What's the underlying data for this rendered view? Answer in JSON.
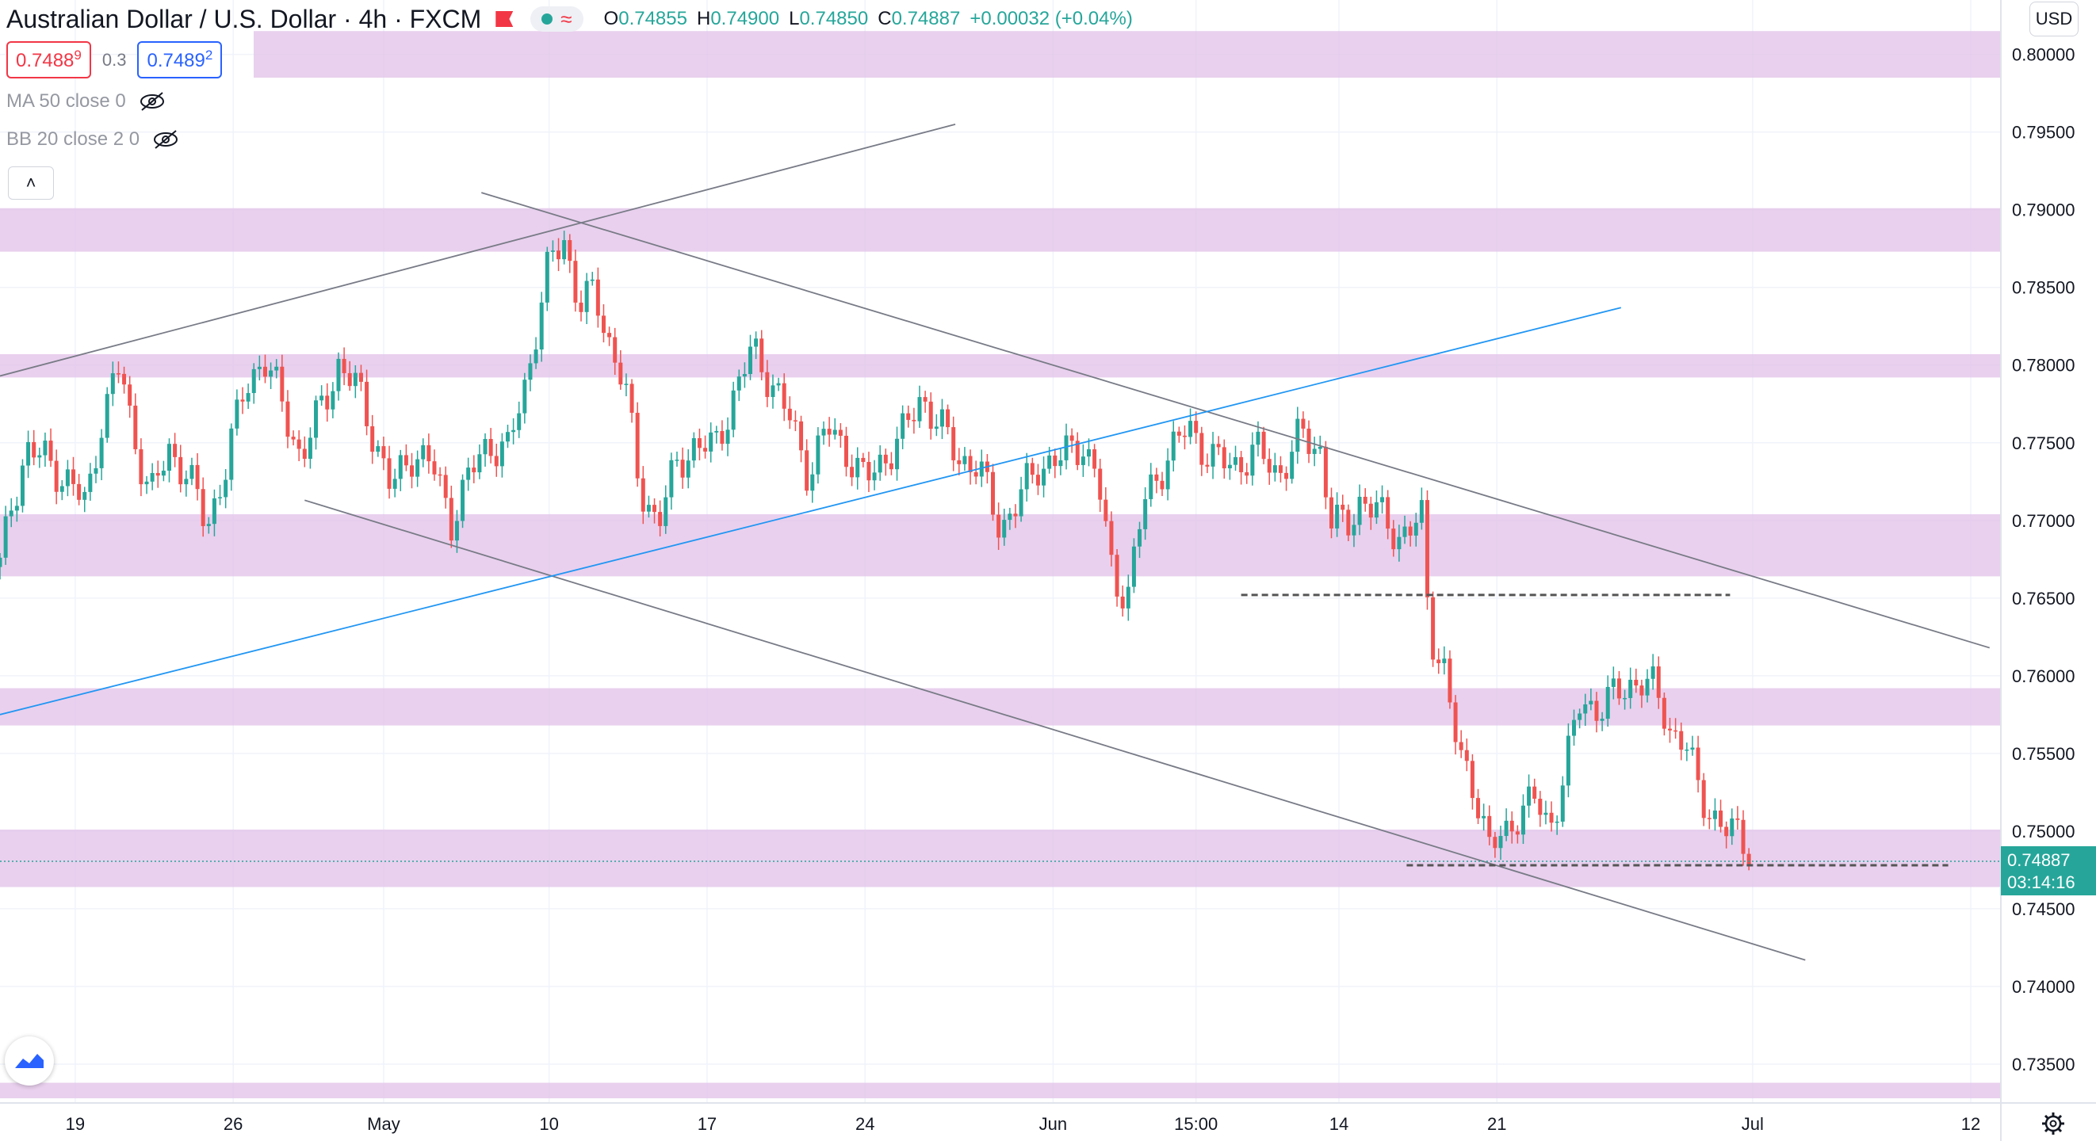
{
  "header": {
    "symbol_title": "Australian Dollar / U.S. Dollar · 4h · FXCM",
    "ohlc": {
      "o_label": "O",
      "o_value": "0.74855",
      "h_label": "H",
      "h_value": "0.74900",
      "l_label": "L",
      "l_value": "0.74850",
      "c_label": "C",
      "c_value": "0.74887",
      "change": "+0.00032 (+0.04%)"
    },
    "status_icons": [
      "market-open-dot-icon",
      "data-wave-icon"
    ],
    "flag_icon": "red-flag-icon"
  },
  "quote": {
    "bid_main": "0.7488",
    "bid_small": "9",
    "spread": "0.3",
    "ask_main": "0.7489",
    "ask_small": "2"
  },
  "indicators": [
    {
      "label": "MA 50 close 0",
      "icon": "eye-off-icon"
    },
    {
      "label": "BB 20 close 2 0",
      "icon": "eye-off-icon"
    }
  ],
  "currency_button": "USD",
  "current_price": {
    "price": "0.74887",
    "countdown": "03:14:16"
  },
  "colors": {
    "up": "#26a69a",
    "down": "#ef5350",
    "zone": "#e1bee7",
    "trendline": "#787b86",
    "blue_line": "#2196f3",
    "dashed": "#555555"
  },
  "chart_data": {
    "type": "candlestick",
    "symbol": "AUDUSD",
    "timeframe": "4h",
    "y_axis": {
      "ylim": [
        0.7325,
        0.8035
      ],
      "ticks": [
        "0.80000",
        "0.79500",
        "0.79000",
        "0.78500",
        "0.78000",
        "0.77500",
        "0.77000",
        "0.76500",
        "0.76000",
        "0.75500",
        "0.75000",
        "0.74500",
        "0.74000",
        "0.73500"
      ]
    },
    "x_axis": {
      "ticks": [
        {
          "label": "19",
          "x": 20
        },
        {
          "label": "26",
          "x": 62
        },
        {
          "label": "May",
          "x": 102
        },
        {
          "label": "10",
          "x": 146
        },
        {
          "label": "17",
          "x": 188
        },
        {
          "label": "24",
          "x": 230
        },
        {
          "label": "Jun",
          "x": 280
        },
        {
          "label": "15:00",
          "x": 318
        },
        {
          "label": "14",
          "x": 356
        },
        {
          "label": "21",
          "x": 398
        },
        {
          "label": "Jul",
          "x": 466
        },
        {
          "label": "12",
          "x": 524
        }
      ]
    },
    "zones": [
      [
        0.7985,
        0.8015
      ],
      [
        0.7873,
        0.7901
      ],
      [
        0.7792,
        0.7807
      ],
      [
        0.7664,
        0.7704
      ],
      [
        0.7568,
        0.7592
      ],
      [
        0.7464,
        0.7501
      ],
      [
        0.7328,
        0.7338
      ]
    ],
    "trendlines": [
      {
        "kind": "solid",
        "color": "gray",
        "from": [
          0,
          0.7793
        ],
        "to": [
          254,
          0.7955
        ]
      },
      {
        "kind": "solid",
        "color": "gray",
        "from": [
          128,
          0.7911
        ],
        "to": [
          529,
          0.7618
        ]
      },
      {
        "kind": "solid",
        "color": "gray",
        "from": [
          81,
          0.7713
        ],
        "to": [
          480,
          0.7417
        ]
      },
      {
        "kind": "solid",
        "color": "blue",
        "from": [
          0,
          0.7575
        ],
        "to": [
          431,
          0.7837
        ]
      },
      {
        "kind": "dashed",
        "color": "dark",
        "from": [
          330,
          0.7652
        ],
        "to": [
          460,
          0.7652
        ]
      },
      {
        "kind": "dashed",
        "color": "dark",
        "from": [
          374,
          0.7478
        ],
        "to": [
          518,
          0.7478
        ]
      }
    ],
    "close_path": [
      [
        0,
        0.767
      ],
      [
        3,
        0.771
      ],
      [
        7,
        0.7745
      ],
      [
        12,
        0.774
      ],
      [
        18,
        0.7725
      ],
      [
        23,
        0.771
      ],
      [
        27,
        0.7765
      ],
      [
        32,
        0.78
      ],
      [
        35,
        0.776
      ],
      [
        40,
        0.7715
      ],
      [
        45,
        0.7745
      ],
      [
        50,
        0.773
      ],
      [
        55,
        0.7695
      ],
      [
        60,
        0.7735
      ],
      [
        65,
        0.7785
      ],
      [
        70,
        0.7805
      ],
      [
        75,
        0.7775
      ],
      [
        80,
        0.774
      ],
      [
        85,
        0.777
      ],
      [
        90,
        0.78
      ],
      [
        95,
        0.7785
      ],
      [
        100,
        0.775
      ],
      [
        104,
        0.772
      ],
      [
        110,
        0.7745
      ],
      [
        115,
        0.7735
      ],
      [
        120,
        0.77
      ],
      [
        125,
        0.773
      ],
      [
        130,
        0.775
      ],
      [
        135,
        0.7745
      ],
      [
        140,
        0.779
      ],
      [
        143,
        0.783
      ],
      [
        146,
        0.7865
      ],
      [
        150,
        0.788
      ],
      [
        154,
        0.784
      ],
      [
        158,
        0.7845
      ],
      [
        162,
        0.7815
      ],
      [
        166,
        0.779
      ],
      [
        170,
        0.772
      ],
      [
        175,
        0.77
      ],
      [
        180,
        0.7735
      ],
      [
        185,
        0.775
      ],
      [
        190,
        0.7745
      ],
      [
        195,
        0.778
      ],
      [
        200,
        0.781
      ],
      [
        205,
        0.779
      ],
      [
        210,
        0.7765
      ],
      [
        215,
        0.773
      ],
      [
        220,
        0.776
      ],
      [
        225,
        0.7745
      ],
      [
        230,
        0.7725
      ],
      [
        235,
        0.774
      ],
      [
        240,
        0.7755
      ],
      [
        245,
        0.778
      ],
      [
        250,
        0.776
      ],
      [
        255,
        0.774
      ],
      [
        260,
        0.7735
      ],
      [
        266,
        0.7695
      ],
      [
        270,
        0.771
      ],
      [
        276,
        0.7735
      ],
      [
        282,
        0.774
      ],
      [
        288,
        0.775
      ],
      [
        292,
        0.7725
      ],
      [
        296,
        0.766
      ],
      [
        300,
        0.7655
      ],
      [
        304,
        0.771
      ],
      [
        310,
        0.774
      ],
      [
        316,
        0.776
      ],
      [
        322,
        0.774
      ],
      [
        328,
        0.7735
      ],
      [
        334,
        0.7745
      ],
      [
        340,
        0.773
      ],
      [
        346,
        0.7755
      ],
      [
        351,
        0.7745
      ],
      [
        354,
        0.77
      ],
      [
        358,
        0.7695
      ],
      [
        362,
        0.7715
      ],
      [
        368,
        0.77
      ],
      [
        372,
        0.769
      ],
      [
        378,
        0.77
      ],
      [
        380,
        0.763
      ],
      [
        384,
        0.7605
      ],
      [
        388,
        0.7545
      ],
      [
        392,
        0.753
      ],
      [
        396,
        0.749
      ],
      [
        400,
        0.7495
      ],
      [
        404,
        0.7515
      ],
      [
        408,
        0.752
      ],
      [
        412,
        0.75
      ],
      [
        416,
        0.754
      ],
      [
        420,
        0.758
      ],
      [
        424,
        0.758
      ],
      [
        428,
        0.7585
      ],
      [
        432,
        0.759
      ],
      [
        436,
        0.76
      ],
      [
        440,
        0.759
      ],
      [
        444,
        0.7565
      ],
      [
        448,
        0.756
      ],
      [
        452,
        0.752
      ],
      [
        456,
        0.751
      ],
      [
        460,
        0.75
      ],
      [
        464,
        0.749
      ],
      [
        466,
        0.74887
      ]
    ],
    "x_domain": [
      0,
      532
    ],
    "last_x": 466
  }
}
